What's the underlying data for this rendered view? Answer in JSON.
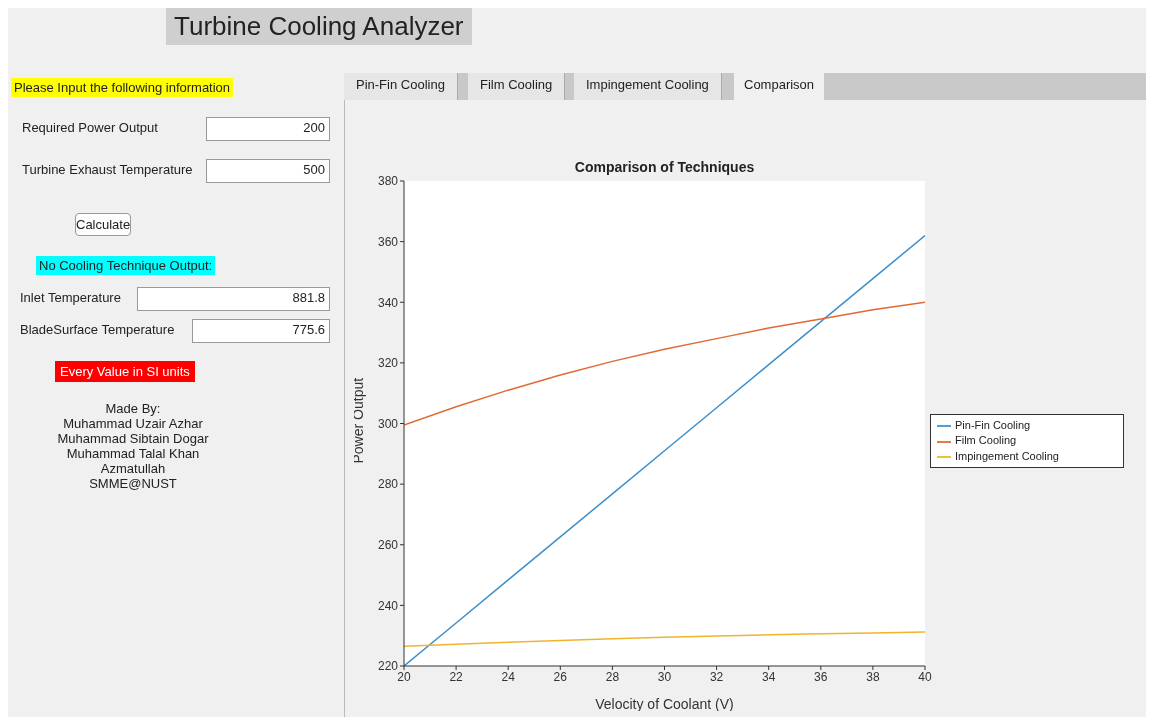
{
  "chart_data": [
    {
      "type": "other",
      "title": "Turbine Cooling Analyzer",
      "annotations": [
        "Please Input the following information",
        "Required Power Output",
        "200",
        "Turbine Exhaust Temperature",
        "500",
        "Calculate",
        "No Cooling Technique Output:",
        "Inlet Temperature",
        "881.8",
        "BladeSurface Temperature",
        "775.6",
        "Every Value in SI units",
        "Made By:",
        "Muhammad Uzair Azhar",
        "Muhammad Sibtain Dogar",
        "Muhammad Talal Khan",
        "Azmatullah",
        "SMME@NUST",
        "Pin-Fin Cooling",
        "Film Cooling",
        "Impingement Cooling",
        "Comparison"
      ]
    },
    {
      "type": "line",
      "title": "Comparison of Techniques",
      "xlabel": "Velocity of Coolant (V)",
      "ylabel": "Power Output",
      "x": [
        20,
        22,
        24,
        26,
        28,
        30,
        32,
        34,
        36,
        38,
        40
      ],
      "xlim": [
        20,
        40
      ],
      "xticks": [
        20,
        22,
        24,
        26,
        28,
        30,
        32,
        34,
        36,
        38,
        40
      ],
      "ylim": [
        220,
        380
      ],
      "yticks": [
        220,
        240,
        260,
        280,
        300,
        320,
        340,
        360,
        380
      ],
      "legend": "right",
      "marker": "none",
      "line_style": "solid",
      "series": [
        {
          "name": "Pin-Fin Cooling",
          "color": "#3d8fcb",
          "values": [
            220,
            234.2,
            248.4,
            262.6,
            276.8,
            291,
            305.2,
            319.4,
            333.6,
            347.8,
            362
          ]
        },
        {
          "name": "Film Cooling",
          "color": "#e06a36",
          "values": [
            299.5,
            305.5,
            311,
            316,
            320.5,
            324.5,
            328,
            331.5,
            334.5,
            337.5,
            340
          ]
        },
        {
          "name": "Impingement Cooling",
          "color": "#efb42c",
          "values": [
            226.5,
            227.2,
            227.8,
            228.4,
            229,
            229.5,
            229.9,
            230.3,
            230.6,
            230.9,
            231.2
          ]
        }
      ]
    }
  ]
}
